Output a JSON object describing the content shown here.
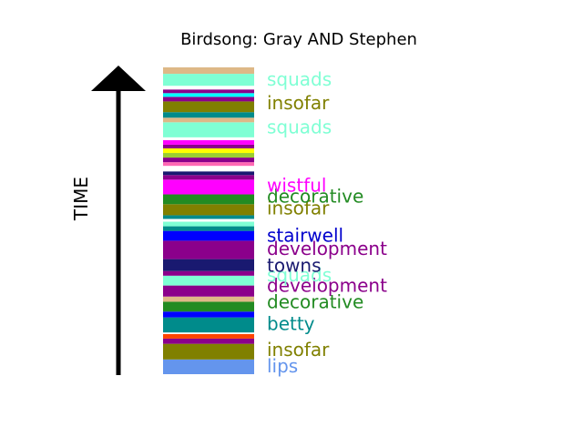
{
  "chart_data": {
    "type": "stacked-bar-timeline",
    "title": "Birdsong: Gray AND Stephen",
    "ylabel": "TIME",
    "ylim": [
      0,
      100
    ],
    "segments": [
      {
        "y0": 0.0,
        "y1": 4.8,
        "color": "#6495ed"
      },
      {
        "y0": 4.8,
        "y1": 9.9,
        "color": "#808000"
      },
      {
        "y0": 9.9,
        "y1": 11.6,
        "color": "#8b008b"
      },
      {
        "y0": 11.6,
        "y1": 13.1,
        "color": "#ff4500"
      },
      {
        "y0": 13.1,
        "y1": 13.6,
        "color": "#ffffff"
      },
      {
        "y0": 13.6,
        "y1": 18.5,
        "color": "#008b8b"
      },
      {
        "y0": 18.5,
        "y1": 20.4,
        "color": "#0000ff"
      },
      {
        "y0": 20.4,
        "y1": 23.6,
        "color": "#228b22"
      },
      {
        "y0": 23.6,
        "y1": 25.3,
        "color": "#deb887"
      },
      {
        "y0": 25.3,
        "y1": 28.9,
        "color": "#8b008b"
      },
      {
        "y0": 28.9,
        "y1": 32.1,
        "color": "#7fffd4"
      },
      {
        "y0": 32.1,
        "y1": 33.6,
        "color": "#8b008b"
      },
      {
        "y0": 33.6,
        "y1": 37.5,
        "color": "#191970"
      },
      {
        "y0": 37.5,
        "y1": 43.5,
        "color": "#8b008b"
      },
      {
        "y0": 43.5,
        "y1": 46.7,
        "color": "#0000ff"
      },
      {
        "y0": 46.7,
        "y1": 48.2,
        "color": "#008b8b"
      },
      {
        "y0": 48.2,
        "y1": 49.7,
        "color": "#7fffd4"
      },
      {
        "y0": 49.7,
        "y1": 50.6,
        "color": "#ffffff"
      },
      {
        "y0": 50.6,
        "y1": 51.8,
        "color": "#008b8b"
      },
      {
        "y0": 51.8,
        "y1": 55.4,
        "color": "#808000"
      },
      {
        "y0": 55.4,
        "y1": 58.6,
        "color": "#228b22"
      },
      {
        "y0": 58.6,
        "y1": 63.4,
        "color": "#ff00ff"
      },
      {
        "y0": 63.4,
        "y1": 64.9,
        "color": "#8b008b"
      },
      {
        "y0": 64.9,
        "y1": 66.1,
        "color": "#191970"
      },
      {
        "y0": 66.1,
        "y1": 67.9,
        "color": "#ffffff"
      },
      {
        "y0": 67.9,
        "y1": 69.1,
        "color": "#ff69b4"
      },
      {
        "y0": 69.1,
        "y1": 70.6,
        "color": "#8b008b"
      },
      {
        "y0": 70.6,
        "y1": 72.1,
        "color": "#9acd32"
      },
      {
        "y0": 72.1,
        "y1": 73.6,
        "color": "#ffff00"
      },
      {
        "y0": 73.6,
        "y1": 74.8,
        "color": "#8b008b"
      },
      {
        "y0": 74.8,
        "y1": 76.3,
        "color": "#ff00ff"
      },
      {
        "y0": 76.3,
        "y1": 77.2,
        "color": "#ffffff"
      },
      {
        "y0": 77.2,
        "y1": 82.1,
        "color": "#7fffd4"
      },
      {
        "y0": 82.1,
        "y1": 83.6,
        "color": "#deb887"
      },
      {
        "y0": 83.6,
        "y1": 85.4,
        "color": "#008b8b"
      },
      {
        "y0": 85.4,
        "y1": 88.9,
        "color": "#808000"
      },
      {
        "y0": 88.9,
        "y1": 90.4,
        "color": "#8b008b"
      },
      {
        "y0": 90.4,
        "y1": 91.6,
        "color": "#00ffff"
      },
      {
        "y0": 91.6,
        "y1": 92.8,
        "color": "#8b008b"
      },
      {
        "y0": 92.8,
        "y1": 94.0,
        "color": "#ffffff"
      },
      {
        "y0": 94.0,
        "y1": 97.9,
        "color": "#7fffd4"
      },
      {
        "y0": 97.9,
        "y1": 100.0,
        "color": "#deb887"
      }
    ],
    "labels": [
      {
        "text": "lips",
        "y": 2.7,
        "color": "#6495ed"
      },
      {
        "text": "insofar",
        "y": 8.0,
        "color": "#808000"
      },
      {
        "text": "betty",
        "y": 16.5,
        "color": "#008b8b"
      },
      {
        "text": "decorative",
        "y": 23.6,
        "color": "#228b22"
      },
      {
        "text": "development",
        "y": 28.9,
        "color": "#8b008b"
      },
      {
        "text": "squads",
        "y": 32.4,
        "color": "#7fffd4"
      },
      {
        "text": "towns",
        "y": 35.4,
        "color": "#191970"
      },
      {
        "text": "development",
        "y": 40.9,
        "color": "#8b008b"
      },
      {
        "text": "stairwell",
        "y": 45.3,
        "color": "#0000cd"
      },
      {
        "text": "insofar",
        "y": 54.2,
        "color": "#808000"
      },
      {
        "text": "decorative",
        "y": 58.0,
        "color": "#228b22"
      },
      {
        "text": "wistful",
        "y": 61.6,
        "color": "#ff00ff"
      },
      {
        "text": "squads",
        "y": 80.6,
        "color": "#7fffd4"
      },
      {
        "text": "insofar",
        "y": 88.4,
        "color": "#808000"
      },
      {
        "text": "squads",
        "y": 96.1,
        "color": "#7fffd4"
      }
    ]
  }
}
